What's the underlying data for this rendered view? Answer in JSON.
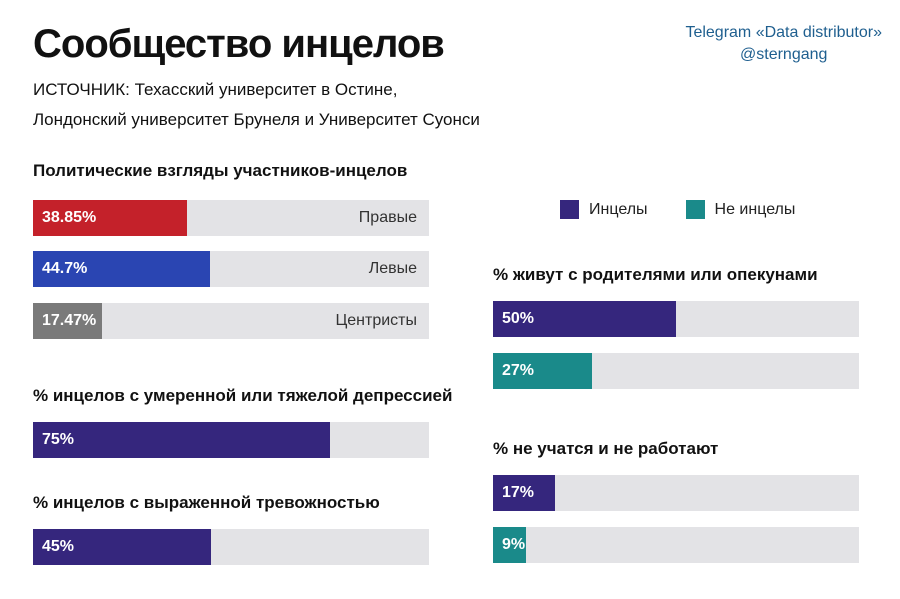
{
  "header": {
    "title": "Сообщество инцелов",
    "source_line1": "ИСТОЧНИК: Техасский университет в Остине,",
    "source_line2": "Лондонский университет Брунеля и Университет Суонси",
    "credit_line1": "Telegram «Data distributor»",
    "credit_line2": "@sterngang"
  },
  "colors": {
    "incels": "#35267d",
    "non_incels": "#1a8a8a",
    "right": "#c4212a",
    "left": "#2a45b2",
    "centrists": "#7a7a7a",
    "track": "#e3e3e6"
  },
  "chart_data": [
    {
      "type": "bar",
      "title": "Политические взгляды участников-инцелов",
      "categories": [
        "Правые",
        "Левые",
        "Центристы"
      ],
      "values": [
        38.85,
        44.7,
        17.47
      ],
      "value_labels": [
        "38.85%",
        "44.7%",
        "17.47%"
      ],
      "xlim": [
        0,
        100
      ]
    },
    {
      "type": "bar",
      "title": "% инцелов с умеренной или тяжелой депрессией",
      "values": [
        75
      ],
      "value_labels": [
        "75%"
      ],
      "xlim": [
        0,
        100
      ]
    },
    {
      "type": "bar",
      "title": "% инцелов с выраженной тревожностью",
      "values": [
        45
      ],
      "value_labels": [
        "45%"
      ],
      "xlim": [
        0,
        100
      ]
    },
    {
      "type": "bar",
      "title": "% живут с родителями или опекунами",
      "series": [
        {
          "name": "Инцелы",
          "values": [
            50
          ]
        },
        {
          "name": "Не инцелы",
          "values": [
            27
          ]
        }
      ],
      "value_labels": [
        "50%",
        "27%"
      ],
      "xlim": [
        0,
        100
      ]
    },
    {
      "type": "bar",
      "title": "% не учатся и не работают",
      "series": [
        {
          "name": "Инцелы",
          "values": [
            17
          ]
        },
        {
          "name": "Не инцелы",
          "values": [
            9
          ]
        }
      ],
      "value_labels": [
        "17%",
        "9%"
      ],
      "xlim": [
        0,
        100
      ],
      "legend": {
        "position": "top-right",
        "items": [
          "Инцелы",
          "Не инцелы"
        ]
      }
    }
  ]
}
